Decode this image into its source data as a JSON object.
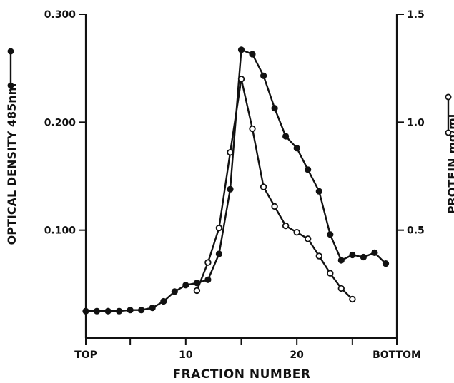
{
  "chart_data": {
    "type": "line",
    "xlabel": "FRACTION NUMBER",
    "ylabel_left": "OPTICAL DENSITY 485nm",
    "ylabel_right": "PROTEIN mg/ml",
    "x_tick_labels": [
      {
        "x": 1,
        "label": "TOP"
      },
      {
        "x": 10,
        "label": "10"
      },
      {
        "x": 20,
        "label": "20"
      },
      {
        "x": 29,
        "label": "BOTTOM"
      }
    ],
    "x_minor_ticks": [
      5,
      15,
      25
    ],
    "xlim": [
      1,
      29
    ],
    "ylim_left": [
      0,
      0.3
    ],
    "ylim_right": [
      0,
      1.5
    ],
    "yticks_left": [
      {
        "value": 0.1,
        "label": "0.100"
      },
      {
        "value": 0.2,
        "label": "0.200"
      },
      {
        "value": 0.3,
        "label": "0.300"
      }
    ],
    "yticks_right": [
      {
        "value": 0.5,
        "label": "0.5"
      },
      {
        "value": 1.0,
        "label": "1.0"
      },
      {
        "value": 1.5,
        "label": "1.5"
      }
    ],
    "grid": false,
    "series": [
      {
        "marker": "filled",
        "axis": "left",
        "x": [
          1,
          2,
          3,
          4,
          5,
          6,
          7,
          8,
          9,
          10,
          11,
          12,
          13,
          14,
          15,
          16,
          17,
          18,
          19,
          20,
          21,
          22,
          23,
          24,
          25,
          26,
          27,
          28
        ],
        "y": [
          0.025,
          0.025,
          0.025,
          0.025,
          0.026,
          0.026,
          0.028,
          0.034,
          0.043,
          0.049,
          0.051,
          0.054,
          0.078,
          0.138,
          0.267,
          0.263,
          0.243,
          0.213,
          0.187,
          0.176,
          0.156,
          0.136,
          0.096,
          0.072,
          0.077,
          0.075,
          0.079,
          0.069
        ]
      },
      {
        "marker": "open",
        "axis": "right",
        "x": [
          11,
          12,
          13,
          14,
          15,
          16,
          17,
          18,
          19,
          20,
          21,
          22,
          23,
          24,
          25
        ],
        "y": [
          0.22,
          0.35,
          0.51,
          0.86,
          1.2,
          0.97,
          0.7,
          0.61,
          0.52,
          0.49,
          0.46,
          0.38,
          0.3,
          0.23,
          0.18
        ]
      }
    ]
  }
}
